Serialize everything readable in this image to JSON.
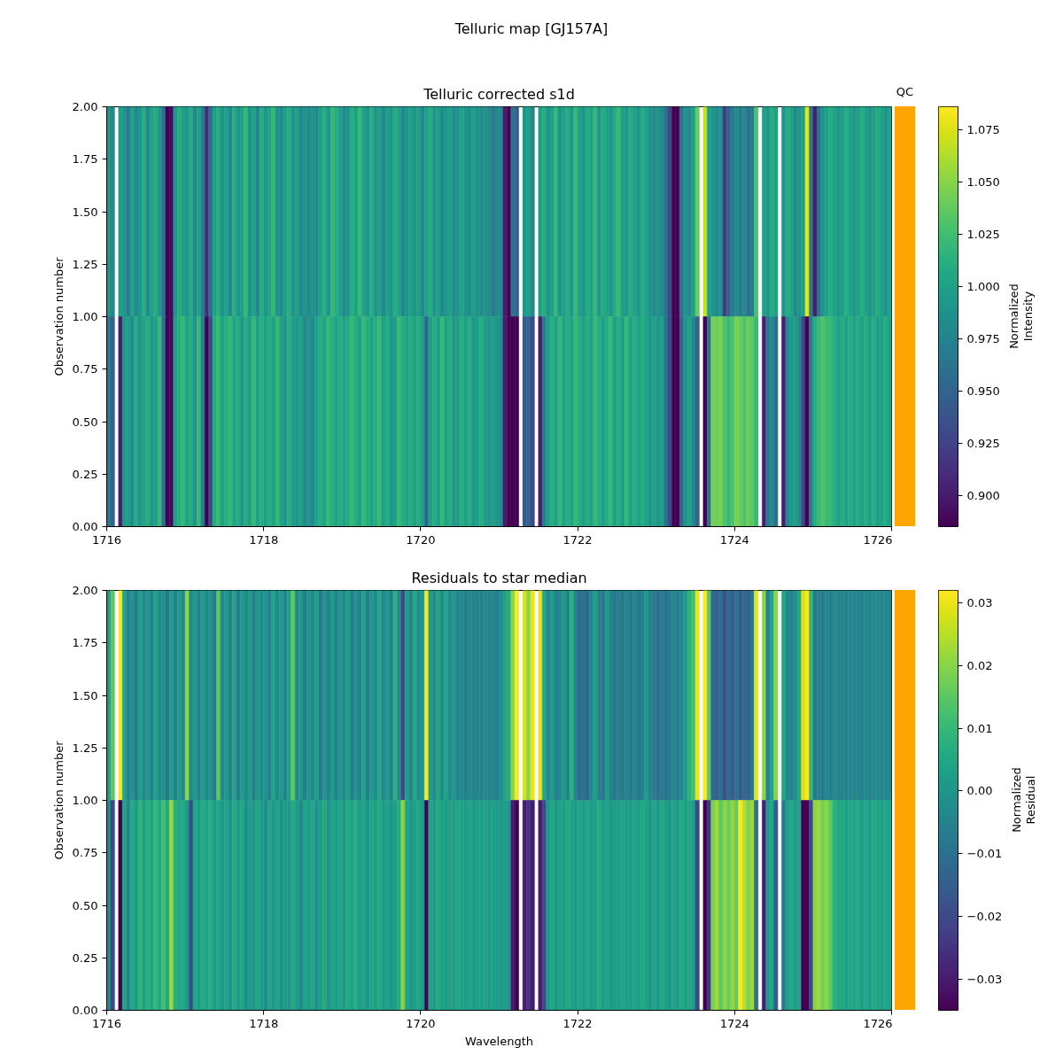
{
  "chart_data": [
    {
      "type": "heatmap",
      "title": "Telluric map [GJ157A]",
      "subtitle": "Telluric corrected s1d",
      "ylabel": "Observation number",
      "annotations": [
        "QC"
      ],
      "x": [
        1716.025,
        1716.075,
        1716.125,
        1716.175,
        1716.225,
        1716.275,
        1716.325,
        1716.375,
        1716.425,
        1716.475,
        1716.525,
        1716.575,
        1716.625,
        1716.675,
        1716.725,
        1716.775,
        1716.825,
        1716.875,
        1716.925,
        1716.975,
        1717.025,
        1717.075,
        1717.125,
        1717.175,
        1717.225,
        1717.275,
        1717.325,
        1717.375,
        1717.425,
        1717.475,
        1717.525,
        1717.575,
        1717.625,
        1717.675,
        1717.725,
        1717.775,
        1717.825,
        1717.875,
        1717.925,
        1717.975,
        1718.025,
        1718.075,
        1718.125,
        1718.175,
        1718.225,
        1718.275,
        1718.325,
        1718.375,
        1718.425,
        1718.475,
        1718.525,
        1718.575,
        1718.625,
        1718.675,
        1718.725,
        1718.775,
        1718.825,
        1718.875,
        1718.925,
        1718.975,
        1719.025,
        1719.075,
        1719.125,
        1719.175,
        1719.225,
        1719.275,
        1719.325,
        1719.375,
        1719.425,
        1719.475,
        1719.525,
        1719.575,
        1719.625,
        1719.675,
        1719.725,
        1719.775,
        1719.825,
        1719.875,
        1719.925,
        1719.975,
        1720.025,
        1720.075,
        1720.125,
        1720.175,
        1720.225,
        1720.275,
        1720.325,
        1720.375,
        1720.425,
        1720.475,
        1720.525,
        1720.575,
        1720.625,
        1720.675,
        1720.725,
        1720.775,
        1720.825,
        1720.875,
        1720.925,
        1720.975,
        1721.025,
        1721.075,
        1721.125,
        1721.175,
        1721.225,
        1721.275,
        1721.325,
        1721.375,
        1721.425,
        1721.475,
        1721.525,
        1721.575,
        1721.625,
        1721.675,
        1721.725,
        1721.775,
        1721.825,
        1721.875,
        1721.925,
        1721.975,
        1722.025,
        1722.075,
        1722.125,
        1722.175,
        1722.225,
        1722.275,
        1722.325,
        1722.375,
        1722.425,
        1722.475,
        1722.525,
        1722.575,
        1722.625,
        1722.675,
        1722.725,
        1722.775,
        1722.825,
        1722.875,
        1722.925,
        1722.975,
        1723.025,
        1723.075,
        1723.125,
        1723.175,
        1723.225,
        1723.275,
        1723.325,
        1723.375,
        1723.425,
        1723.475,
        1723.525,
        1723.575,
        1723.625,
        1723.675,
        1723.725,
        1723.775,
        1723.825,
        1723.875,
        1723.925,
        1723.975,
        1724.025,
        1724.075,
        1724.125,
        1724.175,
        1724.225,
        1724.275,
        1724.325,
        1724.375,
        1724.425,
        1724.475,
        1724.525,
        1724.575,
        1724.625,
        1724.675,
        1724.725,
        1724.775,
        1724.825,
        1724.875,
        1724.925,
        1724.975,
        1725.025,
        1725.075,
        1725.125,
        1725.175,
        1725.225,
        1725.275,
        1725.325,
        1725.375,
        1725.425,
        1725.475,
        1725.525,
        1725.575,
        1725.625,
        1725.675,
        1725.725,
        1725.775,
        1725.825,
        1725.875,
        1725.925,
        1725.975
      ],
      "xlim": [
        1716,
        1726
      ],
      "xticks": [
        1716,
        1718,
        1720,
        1722,
        1724,
        1726
      ],
      "ylim": [
        0,
        2
      ],
      "yticks": [
        {
          "value": 0,
          "label": "0.00"
        },
        {
          "value": 0.25,
          "label": "0.25"
        },
        {
          "value": 0.5,
          "label": "0.50"
        },
        {
          "value": 0.75,
          "label": "0.75"
        },
        {
          "value": 1,
          "label": "1.00"
        },
        {
          "value": 1.25,
          "label": "1.25"
        },
        {
          "value": 1.5,
          "label": "1.50"
        },
        {
          "value": 1.75,
          "label": "1.75"
        },
        {
          "value": 2,
          "label": "2.00"
        }
      ],
      "cells": [
        [
          0.99,
          0.98,
          null,
          1.0,
          0.99,
          0.97,
          1.0,
          0.98,
          0.99,
          1.01,
          0.98,
          1.0,
          1.01,
          0.99,
          0.96,
          0.885,
          0.89,
          0.99,
          1.01,
          1.0,
          0.99,
          1.01,
          0.98,
          1.0,
          0.97,
          0.91,
          0.96,
          1.0,
          1.01,
          0.99,
          1.0,
          0.98,
          1.01,
          0.99,
          1.0,
          1.02,
          0.99,
          1.0,
          0.98,
          1.01,
          0.99,
          1.0,
          1.02,
          0.99,
          0.98,
          1.0,
          1.01,
          0.99,
          1.0,
          0.98,
          0.99,
          0.98,
          0.99,
          0.98,
          1.0,
          1.01,
          0.99,
          1.02,
          1.01,
          1.0,
          0.98,
          0.99,
          1.01,
          1.0,
          1.02,
          1.0,
          0.99,
          1.01,
          0.99,
          1.0,
          0.98,
          1.0,
          0.99,
          1.01,
          1.0,
          0.98,
          0.99,
          1.0,
          0.99,
          1.0,
          0.98,
          1.0,
          1.01,
          0.99,
          1.0,
          0.98,
          0.99,
          1.0,
          0.98,
          0.99,
          1.0,
          0.99,
          0.98,
          1.0,
          0.99,
          0.98,
          0.99,
          0.98,
          0.97,
          0.98,
          0.98,
          0.9,
          0.885,
          0.96,
          0.95,
          null,
          0.99,
          1.0,
          0.98,
          null,
          1.0,
          1.01,
          0.99,
          1.0,
          1.02,
          0.99,
          1.0,
          1.01,
          0.99,
          1.02,
          1.0,
          0.99,
          1.01,
          1.0,
          1.02,
          0.99,
          1.01,
          1.0,
          0.99,
          1.01,
          1.02,
          1.0,
          0.99,
          1.01,
          1.0,
          0.99,
          1.01,
          1.0,
          0.99,
          0.98,
          0.99,
          0.98,
          0.96,
          0.93,
          0.885,
          0.885,
          0.96,
          0.99,
          0.98,
          1.0,
          1.04,
          null,
          1.07,
          1.0,
          0.99,
          0.98,
          0.99,
          0.92,
          0.95,
          0.97,
          0.98,
          0.97,
          0.98,
          0.96,
          0.97,
          1.03,
          null,
          1.0,
          0.99,
          1.01,
          1.0,
          null,
          0.99,
          1.01,
          1.0,
          0.98,
          0.99,
          1.0,
          1.08,
          0.97,
          0.9,
          0.96,
          0.99,
          1.0,
          1.01,
          1.0,
          0.99,
          1.0,
          1.01,
          1.0,
          0.99,
          1.0,
          1.01,
          1.0,
          0.99,
          1.0,
          1.01,
          1.0,
          0.99,
          1.0
        ],
        [
          0.97,
          0.95,
          null,
          0.9,
          0.99,
          1.0,
          0.98,
          1.01,
          0.99,
          1.0,
          1.01,
          0.99,
          1.0,
          1.02,
          0.96,
          0.885,
          0.89,
          1.0,
          1.01,
          1.02,
          1.0,
          1.01,
          0.99,
          1.02,
          0.97,
          0.885,
          0.93,
          1.01,
          1.02,
          1.0,
          1.01,
          1.02,
          1.0,
          1.01,
          0.99,
          1.01,
          1.0,
          1.02,
          1.0,
          1.01,
          1.0,
          1.01,
          1.0,
          1.02,
          1.0,
          0.99,
          1.01,
          1.0,
          0.99,
          1.0,
          0.98,
          0.99,
          0.98,
          1.0,
          1.01,
          1.0,
          1.02,
          1.01,
          1.0,
          1.01,
          1.0,
          1.01,
          1.02,
          1.01,
          1.0,
          1.02,
          1.01,
          1.0,
          1.01,
          1.02,
          1.0,
          1.01,
          0.99,
          1.0,
          1.02,
          1.01,
          1.0,
          1.01,
          1.0,
          1.01,
          1.0,
          0.95,
          1.0,
          1.01,
          1.0,
          1.02,
          1.0,
          1.01,
          0.99,
          1.0,
          1.01,
          1.0,
          1.01,
          0.99,
          1.0,
          1.01,
          1.0,
          0.99,
          1.0,
          0.99,
          0.98,
          0.9,
          0.885,
          0.885,
          0.885,
          null,
          0.94,
          0.95,
          0.93,
          null,
          0.9,
          0.97,
          1.0,
          1.01,
          1.0,
          1.02,
          1.0,
          1.01,
          1.0,
          1.02,
          1.01,
          1.0,
          1.01,
          1.0,
          1.02,
          1.01,
          1.0,
          1.01,
          1.02,
          1.0,
          1.01,
          1.0,
          1.02,
          1.0,
          1.01,
          1.0,
          1.01,
          1.0,
          0.99,
          1.0,
          0.99,
          1.0,
          0.96,
          0.93,
          0.885,
          0.885,
          0.95,
          0.99,
          1.0,
          0.98,
          0.95,
          null,
          0.885,
          0.96,
          1.045,
          1.04,
          1.045,
          1.03,
          1.02,
          1.03,
          1.045,
          1.04,
          1.03,
          1.04,
          1.035,
          1.02,
          null,
          0.9,
          0.97,
          0.98,
          0.96,
          null,
          0.9,
          0.98,
          0.99,
          1.0,
          0.98,
          0.93,
          0.885,
          0.97,
          1.01,
          1.02,
          1.03,
          1.02,
          1.02,
          1.01,
          1.0,
          1.01,
          1.0,
          1.01,
          1.0,
          1.01,
          1.0,
          1.01,
          1.0,
          1.01,
          1.0,
          1.0,
          1.01,
          1.0
        ]
      ],
      "clim": [
        0.885,
        1.086
      ],
      "cticks": [
        {
          "value": 0.9,
          "label": "0.900"
        },
        {
          "value": 0.925,
          "label": "0.925"
        },
        {
          "value": 0.95,
          "label": "0.950"
        },
        {
          "value": 0.975,
          "label": "0.975"
        },
        {
          "value": 1.0,
          "label": "1.000"
        },
        {
          "value": 1.025,
          "label": "1.025"
        },
        {
          "value": 1.05,
          "label": "1.050"
        },
        {
          "value": 1.075,
          "label": "1.075"
        }
      ],
      "clabel": "Normalized Intensity"
    },
    {
      "type": "heatmap",
      "title": "Residuals to star median",
      "xlabel": "Wavelength",
      "ylabel": "Observation number",
      "x": [
        1716.025,
        1716.075,
        1716.125,
        1716.175,
        1716.225,
        1716.275,
        1716.325,
        1716.375,
        1716.425,
        1716.475,
        1716.525,
        1716.575,
        1716.625,
        1716.675,
        1716.725,
        1716.775,
        1716.825,
        1716.875,
        1716.925,
        1716.975,
        1717.025,
        1717.075,
        1717.125,
        1717.175,
        1717.225,
        1717.275,
        1717.325,
        1717.375,
        1717.425,
        1717.475,
        1717.525,
        1717.575,
        1717.625,
        1717.675,
        1717.725,
        1717.775,
        1717.825,
        1717.875,
        1717.925,
        1717.975,
        1718.025,
        1718.075,
        1718.125,
        1718.175,
        1718.225,
        1718.275,
        1718.325,
        1718.375,
        1718.425,
        1718.475,
        1718.525,
        1718.575,
        1718.625,
        1718.675,
        1718.725,
        1718.775,
        1718.825,
        1718.875,
        1718.925,
        1718.975,
        1719.025,
        1719.075,
        1719.125,
        1719.175,
        1719.225,
        1719.275,
        1719.325,
        1719.375,
        1719.425,
        1719.475,
        1719.525,
        1719.575,
        1719.625,
        1719.675,
        1719.725,
        1719.775,
        1719.825,
        1719.875,
        1719.925,
        1719.975,
        1720.025,
        1720.075,
        1720.125,
        1720.175,
        1720.225,
        1720.275,
        1720.325,
        1720.375,
        1720.425,
        1720.475,
        1720.525,
        1720.575,
        1720.625,
        1720.675,
        1720.725,
        1720.775,
        1720.825,
        1720.875,
        1720.925,
        1720.975,
        1721.025,
        1721.075,
        1721.125,
        1721.175,
        1721.225,
        1721.275,
        1721.325,
        1721.375,
        1721.425,
        1721.475,
        1721.525,
        1721.575,
        1721.625,
        1721.675,
        1721.725,
        1721.775,
        1721.825,
        1721.875,
        1721.925,
        1721.975,
        1722.025,
        1722.075,
        1722.125,
        1722.175,
        1722.225,
        1722.275,
        1722.325,
        1722.375,
        1722.425,
        1722.475,
        1722.525,
        1722.575,
        1722.625,
        1722.675,
        1722.725,
        1722.775,
        1722.825,
        1722.875,
        1722.925,
        1722.975,
        1723.025,
        1723.075,
        1723.125,
        1723.175,
        1723.225,
        1723.275,
        1723.325,
        1723.375,
        1723.425,
        1723.475,
        1723.525,
        1723.575,
        1723.625,
        1723.675,
        1723.725,
        1723.775,
        1723.825,
        1723.875,
        1723.925,
        1723.975,
        1724.025,
        1724.075,
        1724.125,
        1724.175,
        1724.225,
        1724.275,
        1724.325,
        1724.375,
        1724.425,
        1724.475,
        1724.525,
        1724.575,
        1724.625,
        1724.675,
        1724.725,
        1724.775,
        1724.825,
        1724.875,
        1724.925,
        1724.975,
        1725.025,
        1725.075,
        1725.125,
        1725.175,
        1725.225,
        1725.275,
        1725.325,
        1725.375,
        1725.425,
        1725.475,
        1725.525,
        1725.575,
        1725.625,
        1725.675,
        1725.725,
        1725.775,
        1725.825,
        1725.875,
        1725.925,
        1725.975
      ],
      "xlim": [
        1716,
        1726
      ],
      "xticks": [
        1716,
        1718,
        1720,
        1722,
        1724,
        1726
      ],
      "ylim": [
        0,
        2
      ],
      "yticks": [
        {
          "value": 0,
          "label": "0.00"
        },
        {
          "value": 0.25,
          "label": "0.25"
        },
        {
          "value": 0.5,
          "label": "0.50"
        },
        {
          "value": 0.75,
          "label": "0.75"
        },
        {
          "value": 1,
          "label": "1.00"
        },
        {
          "value": 1.25,
          "label": "1.25"
        },
        {
          "value": 1.5,
          "label": "1.50"
        },
        {
          "value": 1.75,
          "label": "1.75"
        },
        {
          "value": 2,
          "label": "2.00"
        }
      ],
      "cells": [
        [
          0.002,
          0.015,
          null,
          0.032,
          0.005,
          -0.005,
          0.0,
          -0.008,
          0.003,
          -0.004,
          0.002,
          -0.006,
          0.004,
          -0.003,
          0.0,
          -0.008,
          0.003,
          -0.005,
          0.002,
          -0.004,
          0.02,
          -0.003,
          0.002,
          -0.006,
          0.003,
          -0.004,
          0.0,
          -0.007,
          0.015,
          -0.003,
          0.002,
          -0.005,
          0.004,
          -0.006,
          0.001,
          -0.004,
          0.003,
          -0.007,
          0.002,
          -0.003,
          0.0,
          -0.006,
          0.004,
          -0.004,
          0.002,
          -0.005,
          0.003,
          0.015,
          -0.004,
          0.002,
          -0.006,
          0.001,
          -0.004,
          0.003,
          -0.008,
          0.0,
          -0.005,
          0.002,
          -0.006,
          0.001,
          -0.004,
          0.003,
          -0.007,
          0.0,
          -0.005,
          0.004,
          -0.006,
          0.001,
          -0.003,
          0.005,
          -0.004,
          0.002,
          -0.006,
          0.008,
          -0.003,
          -0.02,
          0.003,
          -0.005,
          0.006,
          -0.002,
          0.001,
          0.032,
          0.003,
          -0.004,
          0.005,
          -0.003,
          0.004,
          -0.002,
          0.001,
          -0.005,
          -0.004,
          -0.006,
          -0.003,
          -0.005,
          -0.004,
          -0.006,
          -0.003,
          -0.005,
          -0.004,
          -0.006,
          -0.002,
          0.004,
          0.006,
          0.02,
          0.032,
          null,
          0.028,
          0.02,
          0.03,
          null,
          0.03,
          0.005,
          -0.004,
          0.002,
          -0.006,
          -0.003,
          0.001,
          -0.005,
          0.008,
          -0.004,
          -0.012,
          -0.01,
          -0.012,
          -0.004,
          0.003,
          -0.006,
          -0.008,
          0.002,
          -0.005,
          -0.007,
          -0.006,
          -0.008,
          -0.005,
          -0.007,
          -0.004,
          -0.008,
          -0.006,
          0.002,
          -0.005,
          -0.007,
          -0.01,
          -0.008,
          -0.01,
          -0.006,
          -0.004,
          -0.006,
          -0.005,
          0.002,
          0.008,
          0.012,
          0.03,
          null,
          0.032,
          0.015,
          -0.012,
          -0.015,
          -0.01,
          -0.018,
          -0.012,
          -0.015,
          -0.01,
          -0.016,
          -0.012,
          -0.014,
          -0.008,
          0.03,
          null,
          0.02,
          -0.005,
          0.004,
          0.02,
          null,
          0.005,
          -0.004,
          -0.006,
          -0.002,
          0.005,
          0.028,
          0.032,
          0.01,
          -0.008,
          -0.005,
          -0.007,
          -0.004,
          -0.006,
          -0.003,
          -0.005,
          -0.004,
          -0.006,
          -0.003,
          -0.005,
          -0.004,
          -0.006,
          -0.003,
          -0.005,
          -0.004,
          -0.002,
          -0.005,
          -0.003,
          -0.004
        ],
        [
          -0.002,
          -0.02,
          null,
          -0.035,
          0.004,
          -0.003,
          0.006,
          0.002,
          0.009,
          0.003,
          0.008,
          0.004,
          0.01,
          0.005,
          0.012,
          0.006,
          0.022,
          0.008,
          0.004,
          0.006,
          0.0,
          -0.02,
          0.005,
          0.002,
          0.006,
          0.003,
          0.007,
          0.002,
          0.005,
          0.001,
          0.004,
          0.0,
          0.006,
          0.002,
          0.005,
          -0.002,
          0.003,
          0.0,
          0.005,
          0.002,
          -0.003,
          0.004,
          0.001,
          0.005,
          -0.002,
          0.003,
          0.0,
          0.006,
          0.002,
          -0.003,
          0.004,
          0.001,
          0.005,
          -0.002,
          0.003,
          0.006,
          0.0,
          0.004,
          0.002,
          0.005,
          0.001,
          0.006,
          0.003,
          0.007,
          0.002,
          0.004,
          0.0,
          0.005,
          0.003,
          0.006,
          0.002,
          0.004,
          0.0,
          0.003,
          0.006,
          0.02,
          0.004,
          0.001,
          0.003,
          0.005,
          0.002,
          -0.035,
          0.004,
          0.002,
          0.006,
          0.003,
          0.001,
          0.004,
          0.002,
          0.005,
          0.003,
          0.002,
          0.004,
          0.001,
          0.003,
          0.002,
          0.004,
          0.001,
          0.003,
          0.002,
          0.001,
          0.003,
          0.0,
          -0.03,
          -0.035,
          null,
          -0.03,
          -0.025,
          -0.03,
          null,
          -0.03,
          -0.02,
          0.002,
          0.005,
          0.001,
          0.004,
          0.002,
          0.006,
          0.003,
          0.001,
          0.004,
          0.002,
          0.005,
          0.001,
          0.003,
          0.006,
          0.002,
          0.004,
          0.001,
          0.003,
          0.002,
          0.005,
          0.001,
          0.003,
          0.004,
          0.002,
          0.006,
          0.003,
          0.001,
          0.004,
          0.002,
          0.005,
          0.003,
          0.001,
          0.004,
          0.002,
          0.006,
          0.003,
          0.005,
          0.002,
          -0.02,
          null,
          -0.035,
          -0.025,
          0.018,
          0.022,
          0.015,
          0.02,
          0.017,
          0.021,
          0.016,
          0.032,
          0.025,
          0.019,
          0.022,
          -0.01,
          null,
          -0.03,
          0.002,
          0.004,
          -0.015,
          null,
          -0.008,
          0.003,
          0.005,
          0.002,
          0.004,
          -0.035,
          -0.035,
          -0.02,
          0.02,
          0.022,
          0.018,
          0.02,
          0.015,
          0.008,
          0.005,
          0.006,
          0.003,
          0.005,
          0.004,
          0.006,
          0.002,
          0.005,
          0.003,
          0.006,
          0.004,
          0.002,
          0.005,
          0.003
        ]
      ],
      "clim": [
        -0.035,
        0.032
      ],
      "cticks": [
        {
          "value": -0.03,
          "label": "−0.03"
        },
        {
          "value": -0.02,
          "label": "−0.02"
        },
        {
          "value": -0.01,
          "label": "−0.01"
        },
        {
          "value": 0,
          "label": "0.00"
        },
        0.01,
        0.02,
        0.03
      ],
      "clabel": "Normalized Residual"
    }
  ]
}
